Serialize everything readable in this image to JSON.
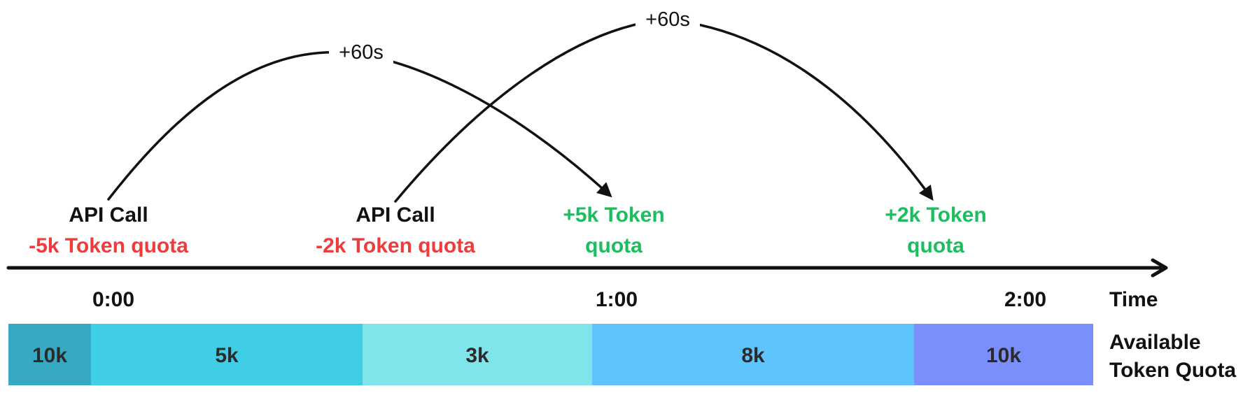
{
  "events": [
    {
      "title": "API Call",
      "amount": "-5k Token quota"
    },
    {
      "title": "API Call",
      "amount": "-2k Token quota"
    }
  ],
  "refills": [
    {
      "line1": "+5k Token",
      "line2": "quota"
    },
    {
      "line1": "+2k Token",
      "line2": "quota"
    }
  ],
  "delays": [
    "+60s",
    "+60s"
  ],
  "timeline": {
    "ticks": [
      "0:00",
      "1:00",
      "2:00"
    ],
    "axis_label": "Time"
  },
  "quota_bar": {
    "label_line1": "Available",
    "label_line2": "Token Quota",
    "segments": [
      {
        "label": "10k",
        "color": "#38a9c3"
      },
      {
        "label": "5k",
        "color": "#40cde6"
      },
      {
        "label": "3k",
        "color": "#80e5ea"
      },
      {
        "label": "8k",
        "color": "#5ec4fb"
      },
      {
        "label": "10k",
        "color": "#7b8ffc"
      }
    ]
  },
  "colors": {
    "text": "#111111",
    "debit": "#ef3b3b",
    "credit": "#1cbd5e",
    "axis": "#111111"
  }
}
